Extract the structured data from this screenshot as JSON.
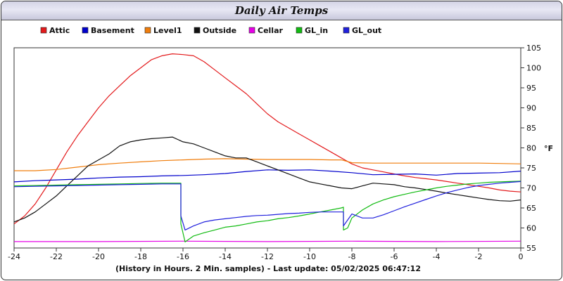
{
  "chart_data": {
    "type": "line",
    "title": "Daily Air Temps",
    "xlabel": "(History in Hours. 2 Min. samples) - Last update: 05/02/2025 06:47:12",
    "ylabel": "°F",
    "xlim": [
      -24,
      0
    ],
    "ylim": [
      55,
      105
    ],
    "xticks": [
      "-24",
      "-22",
      "-20",
      "-18",
      "-16",
      "-14",
      "-12",
      "-10",
      "-8",
      "-6",
      "-4",
      "-2",
      "0"
    ],
    "yticks": [
      "55",
      "60",
      "65",
      "70",
      "75",
      "80",
      "85",
      "90",
      "95",
      "100",
      "105"
    ],
    "grid": false,
    "legend_position": "top",
    "series": [
      {
        "name": "Attic",
        "color": "#e31a1c",
        "x": [
          -24,
          -23.5,
          -23,
          -22.5,
          -22,
          -21.5,
          -21,
          -20.5,
          -20,
          -19.5,
          -19,
          -18.5,
          -18,
          -17.5,
          -17,
          -16.5,
          -16,
          -15.5,
          -15,
          -14.5,
          -14,
          -13.5,
          -13,
          -12.5,
          -12,
          -11.5,
          -11,
          -10.5,
          -10,
          -9.5,
          -9,
          -8.5,
          -8,
          -7.5,
          -7,
          -6.5,
          -6,
          -5.5,
          -5,
          -4.5,
          -4,
          -3.5,
          -3,
          -2.5,
          -2,
          -1.5,
          -1,
          -0.5,
          0
        ],
        "y": [
          61,
          63,
          66,
          70,
          74.5,
          79,
          83,
          86.5,
          90,
          93,
          95.5,
          98,
          100,
          102,
          103,
          103.5,
          103.3,
          103,
          101.5,
          99.5,
          97.5,
          95.5,
          93.5,
          91,
          88.5,
          86.5,
          85,
          83.5,
          82,
          80.5,
          79,
          77.5,
          76,
          75,
          74.5,
          74,
          73.5,
          73,
          72.6,
          72.3,
          72,
          71.6,
          71.2,
          70.8,
          70.4,
          70,
          69.5,
          69.2,
          69
        ]
      },
      {
        "name": "Basement",
        "color": "#0000cc",
        "x": [
          -24,
          -23,
          -22,
          -21,
          -20,
          -19,
          -18,
          -17,
          -16,
          -15,
          -14,
          -13,
          -12,
          -11,
          -10,
          -9,
          -8,
          -7,
          -6,
          -5,
          -4,
          -3,
          -2,
          -1,
          0
        ],
        "y": [
          71.5,
          71.8,
          72,
          72.2,
          72.5,
          72.7,
          72.8,
          73,
          73.1,
          73.3,
          73.6,
          74.1,
          74.5,
          74.4,
          74.5,
          74.2,
          73.8,
          73.3,
          73.4,
          73.5,
          73.2,
          73.6,
          73.7,
          73.8,
          74.2
        ]
      },
      {
        "name": "Level1",
        "color": "#f07d0c",
        "x": [
          -24,
          -23,
          -22,
          -21,
          -20,
          -19,
          -18,
          -17,
          -16,
          -15,
          -14,
          -13,
          -12,
          -11,
          -10,
          -9,
          -8.5,
          -8,
          -7,
          -6,
          -5,
          -4,
          -3,
          -2,
          -1,
          0
        ],
        "y": [
          74.3,
          74.3,
          74.6,
          75.2,
          75.8,
          76.2,
          76.5,
          76.8,
          77,
          77.2,
          77.3,
          77.2,
          77.1,
          77.1,
          77.1,
          77,
          77,
          76.3,
          76.2,
          76.2,
          76.2,
          76.2,
          76.2,
          76.2,
          76.1,
          76
        ]
      },
      {
        "name": "Outside",
        "color": "#111111",
        "x": [
          -24,
          -23.5,
          -23,
          -22.5,
          -22,
          -21.5,
          -21,
          -20.5,
          -20,
          -19.5,
          -19,
          -18.5,
          -18,
          -17.5,
          -17,
          -16.5,
          -16,
          -15.5,
          -15,
          -14.5,
          -14,
          -13.5,
          -13,
          -12.5,
          -12,
          -11.5,
          -11,
          -10.5,
          -10,
          -9.5,
          -9,
          -8.5,
          -8,
          -7.5,
          -7,
          -6.5,
          -6,
          -5.5,
          -5,
          -4.5,
          -4,
          -3.5,
          -3,
          -2.5,
          -2,
          -1.5,
          -1,
          -0.5,
          0
        ],
        "y": [
          61.5,
          62.5,
          64,
          66,
          68,
          70.5,
          73,
          75.5,
          77,
          78.5,
          80.5,
          81.5,
          82,
          82.3,
          82.5,
          82.7,
          81.5,
          81,
          80,
          79,
          78,
          77.5,
          77.5,
          76.5,
          75.5,
          74.5,
          73.5,
          72.5,
          71.5,
          71,
          70.5,
          70,
          69.8,
          70.5,
          71.2,
          71,
          70.8,
          70.3,
          70,
          69.6,
          69.2,
          68.7,
          68.3,
          67.9,
          67.5,
          67.1,
          66.8,
          66.7,
          67
        ]
      },
      {
        "name": "Cellar",
        "color": "#e600e6",
        "x": [
          -24,
          -20,
          -16,
          -12,
          -8,
          -4,
          0
        ],
        "y": [
          56.6,
          56.6,
          56.7,
          56.6,
          56.7,
          56.6,
          56.7
        ]
      },
      {
        "name": "GL_in",
        "color": "#11bb11",
        "x": [
          -24,
          -23,
          -22,
          -21,
          -20,
          -19,
          -18,
          -17,
          -16.1,
          -16.1,
          -15.9,
          -15.5,
          -15,
          -14.5,
          -14,
          -13.5,
          -13,
          -12.5,
          -12,
          -11.5,
          -11,
          -10.5,
          -10,
          -9.5,
          -9,
          -8.5,
          -8.4,
          -8.4,
          -8.2,
          -8,
          -7.5,
          -7,
          -6.5,
          -6,
          -5.5,
          -5,
          -4.5,
          -4,
          -3.5,
          -3,
          -2.5,
          -2,
          -1.5,
          -1,
          -0.5,
          0
        ],
        "y": [
          70.5,
          70.6,
          70.7,
          70.8,
          70.9,
          71,
          71.1,
          71.2,
          71.2,
          61,
          56.5,
          58,
          58.8,
          59.5,
          60.2,
          60.5,
          61,
          61.5,
          61.8,
          62.3,
          62.6,
          63,
          63.5,
          64,
          64.5,
          65,
          65.2,
          59.5,
          60,
          62.5,
          64.5,
          66,
          67,
          67.8,
          68.4,
          69,
          69.5,
          70,
          70.4,
          70.7,
          71,
          71.2,
          71.4,
          71.5,
          71.6,
          71.7
        ]
      },
      {
        "name": "GL_out",
        "color": "#2020dd",
        "x": [
          -24,
          -23,
          -22,
          -21,
          -20,
          -19,
          -18,
          -17,
          -16.1,
          -16.1,
          -15.9,
          -15.5,
          -15,
          -14.5,
          -14,
          -13.5,
          -13,
          -12.5,
          -12,
          -11.5,
          -11,
          -10.5,
          -10,
          -9.5,
          -9,
          -8.5,
          -8.4,
          -8.4,
          -8,
          -7.5,
          -7,
          -6.5,
          -6,
          -5.5,
          -5,
          -4.5,
          -4,
          -3.5,
          -3,
          -2.5,
          -2,
          -1.5,
          -1,
          -0.5,
          0
        ],
        "y": [
          70.3,
          70.4,
          70.5,
          70.6,
          70.7,
          70.8,
          70.9,
          71,
          71,
          63,
          59.5,
          60.5,
          61.5,
          62,
          62.3,
          62.6,
          62.9,
          63.1,
          63.2,
          63.4,
          63.6,
          63.7,
          63.9,
          64,
          64,
          64,
          64,
          60.5,
          63.5,
          62.5,
          62.5,
          63.3,
          64.3,
          65.3,
          66.2,
          67.1,
          68,
          68.8,
          69.5,
          70.1,
          70.6,
          70.9,
          71.2,
          71.4,
          71.6
        ]
      }
    ]
  }
}
